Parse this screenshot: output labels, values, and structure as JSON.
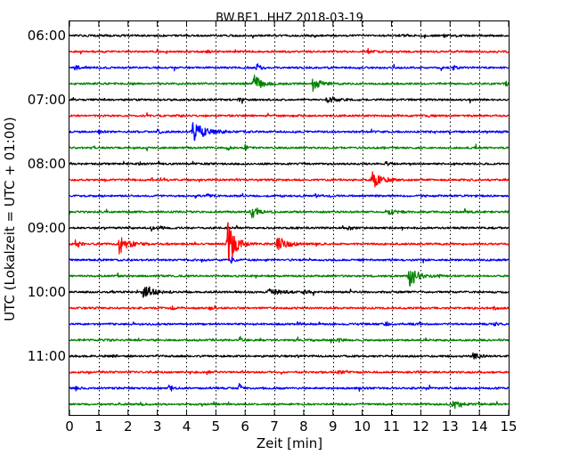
{
  "chart_data": {
    "type": "line",
    "title": "BW.BE1..HHZ 2018-03-19",
    "xlabel": "Zeit  [min]",
    "ylabel": "UTC (Lokalzeit = UTC + 01:00)",
    "xlim": [
      0,
      15
    ],
    "x_ticks": [
      "0",
      "1",
      "2",
      "3",
      "4",
      "5",
      "6",
      "7",
      "8",
      "9",
      "10",
      "11",
      "12",
      "13",
      "14",
      "15"
    ],
    "y_ticks": [
      "06:00",
      "07:00",
      "08:00",
      "09:00",
      "10:00",
      "11:00"
    ],
    "x_grid": "vertical dotted",
    "color_cycle": [
      "#000000",
      "#ff0000",
      "#0000ff",
      "#008000"
    ],
    "baseline_noise": 0.06,
    "series": [
      {
        "start": "06:00",
        "color": "#000000",
        "events": [
          {
            "t": 11.3,
            "amp": 0.12,
            "dur": 0.3
          },
          {
            "t": 12.8,
            "amp": 0.08,
            "dur": 0.2
          }
        ]
      },
      {
        "start": "06:15",
        "color": "#ff0000",
        "events": [
          {
            "t": 10.2,
            "amp": 0.15,
            "dur": 0.3
          },
          {
            "t": 4.7,
            "amp": 0.08,
            "dur": 0.2
          }
        ]
      },
      {
        "start": "06:30",
        "color": "#0000ff",
        "events": [
          {
            "t": 0.2,
            "amp": 0.2,
            "dur": 0.2
          },
          {
            "t": 6.4,
            "amp": 0.25,
            "dur": 0.3
          },
          {
            "t": 13.1,
            "amp": 0.15,
            "dur": 0.2
          }
        ]
      },
      {
        "start": "06:45",
        "color": "#008000",
        "events": [
          {
            "t": 6.3,
            "amp": 0.55,
            "dur": 0.5
          },
          {
            "t": 8.3,
            "amp": 0.45,
            "dur": 0.5
          },
          {
            "t": 14.9,
            "amp": 0.15,
            "dur": 0.2
          }
        ]
      },
      {
        "start": "07:00",
        "color": "#000000",
        "events": [
          {
            "t": 8.8,
            "amp": 0.22,
            "dur": 0.6
          },
          {
            "t": 5.8,
            "amp": 0.12,
            "dur": 0.2
          }
        ]
      },
      {
        "start": "07:15",
        "color": "#ff0000",
        "events": [
          {
            "t": 3.7,
            "amp": 0.12,
            "dur": 0.2
          },
          {
            "t": 12.3,
            "amp": 0.08,
            "dur": 0.2
          }
        ]
      },
      {
        "start": "07:30",
        "color": "#0000ff",
        "events": [
          {
            "t": 4.2,
            "amp": 0.6,
            "dur": 0.9
          },
          {
            "t": 1.0,
            "amp": 0.12,
            "dur": 0.2
          },
          {
            "t": 3.0,
            "amp": 0.12,
            "dur": 0.3
          }
        ]
      },
      {
        "start": "07:45",
        "color": "#008000",
        "events": [
          {
            "t": 5.4,
            "amp": 0.2,
            "dur": 0.2
          },
          {
            "t": 6.0,
            "amp": 0.15,
            "dur": 0.2
          }
        ]
      },
      {
        "start": "08:00",
        "color": "#000000",
        "events": [
          {
            "t": 10.8,
            "amp": 0.15,
            "dur": 0.2
          },
          {
            "t": 2.4,
            "amp": 0.08,
            "dur": 0.2
          }
        ]
      },
      {
        "start": "08:15",
        "color": "#ff0000",
        "events": [
          {
            "t": 10.3,
            "amp": 0.65,
            "dur": 0.6
          },
          {
            "t": 2.8,
            "amp": 0.1,
            "dur": 0.2
          }
        ]
      },
      {
        "start": "08:30",
        "color": "#0000ff",
        "events": [
          {
            "t": 4.7,
            "amp": 0.12,
            "dur": 0.2
          },
          {
            "t": 8.4,
            "amp": 0.1,
            "dur": 0.2
          }
        ]
      },
      {
        "start": "08:45",
        "color": "#008000",
        "events": [
          {
            "t": 6.2,
            "amp": 0.45,
            "dur": 0.4
          },
          {
            "t": 10.8,
            "amp": 0.2,
            "dur": 0.6
          },
          {
            "t": 13.5,
            "amp": 0.15,
            "dur": 0.2
          }
        ]
      },
      {
        "start": "09:00",
        "color": "#000000",
        "events": [
          {
            "t": 9.5,
            "amp": 0.2,
            "dur": 0.2
          },
          {
            "t": 2.8,
            "amp": 0.15,
            "dur": 0.2
          },
          {
            "t": 3.1,
            "amp": 0.15,
            "dur": 0.2
          }
        ]
      },
      {
        "start": "09:15",
        "color": "#ff0000",
        "events": [
          {
            "t": 5.4,
            "amp": 1.6,
            "dur": 0.5
          },
          {
            "t": 1.7,
            "amp": 0.6,
            "dur": 0.6
          },
          {
            "t": 7.1,
            "amp": 0.5,
            "dur": 0.6
          },
          {
            "t": 0.2,
            "amp": 0.3,
            "dur": 0.3
          }
        ]
      },
      {
        "start": "09:30",
        "color": "#0000ff",
        "events": [
          {
            "t": 5.5,
            "amp": 0.3,
            "dur": 0.2
          }
        ]
      },
      {
        "start": "09:45",
        "color": "#008000",
        "events": [
          {
            "t": 11.6,
            "amp": 0.8,
            "dur": 0.5
          },
          {
            "t": 12.6,
            "amp": 0.1,
            "dur": 0.2
          }
        ]
      },
      {
        "start": "10:00",
        "color": "#000000",
        "events": [
          {
            "t": 2.5,
            "amp": 0.45,
            "dur": 0.7
          },
          {
            "t": 6.8,
            "amp": 0.25,
            "dur": 0.7
          },
          {
            "t": 8.0,
            "amp": 0.12,
            "dur": 0.2
          }
        ]
      },
      {
        "start": "10:15",
        "color": "#ff0000",
        "events": [
          {
            "t": 4.8,
            "amp": 0.15,
            "dur": 0.2
          },
          {
            "t": 14.5,
            "amp": 0.15,
            "dur": 0.2
          },
          {
            "t": 3.5,
            "amp": 0.1,
            "dur": 0.2
          }
        ]
      },
      {
        "start": "10:30",
        "color": "#0000ff",
        "events": [
          {
            "t": 7.8,
            "amp": 0.15,
            "dur": 0.2
          },
          {
            "t": 10.8,
            "amp": 0.15,
            "dur": 0.2
          },
          {
            "t": 14.5,
            "amp": 0.15,
            "dur": 0.2
          }
        ]
      },
      {
        "start": "10:45",
        "color": "#008000",
        "events": [
          {
            "t": 5.8,
            "amp": 0.15,
            "dur": 0.2
          },
          {
            "t": 1.3,
            "amp": 0.1,
            "dur": 0.2
          },
          {
            "t": 9.2,
            "amp": 0.1,
            "dur": 0.2
          }
        ]
      },
      {
        "start": "11:00",
        "color": "#000000",
        "events": [
          {
            "t": 13.8,
            "amp": 0.3,
            "dur": 0.3
          },
          {
            "t": 1.5,
            "amp": 0.08,
            "dur": 0.2
          }
        ]
      },
      {
        "start": "11:15",
        "color": "#ff0000",
        "events": [
          {
            "t": 4.7,
            "amp": 0.12,
            "dur": 0.2
          },
          {
            "t": 9.2,
            "amp": 0.12,
            "dur": 0.2
          }
        ]
      },
      {
        "start": "11:30",
        "color": "#0000ff",
        "events": [
          {
            "t": 3.4,
            "amp": 0.25,
            "dur": 0.3
          },
          {
            "t": 5.8,
            "amp": 0.3,
            "dur": 0.2
          },
          {
            "t": 0.2,
            "amp": 0.15,
            "dur": 0.2
          }
        ]
      },
      {
        "start": "11:45",
        "color": "#008000",
        "events": [
          {
            "t": 13.1,
            "amp": 0.35,
            "dur": 0.4
          },
          {
            "t": 2.4,
            "amp": 0.12,
            "dur": 0.2
          }
        ]
      }
    ]
  }
}
